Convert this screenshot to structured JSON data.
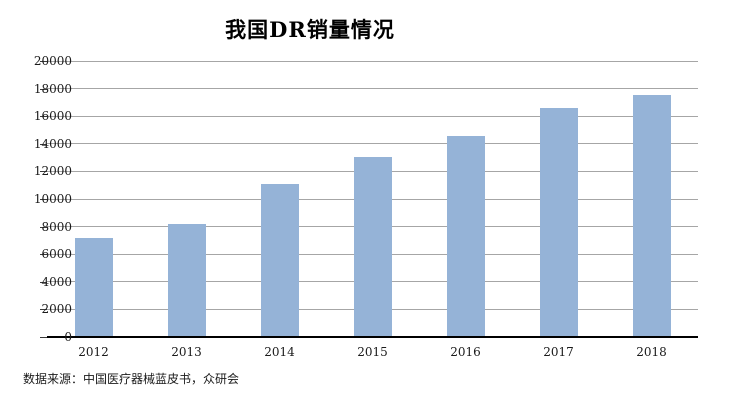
{
  "chart_data": {
    "type": "bar",
    "title": "我国DR销量情况",
    "categories": [
      "2012",
      "2013",
      "2014",
      "2015",
      "2016",
      "2017",
      "2018"
    ],
    "values": [
      7100,
      8100,
      11000,
      13000,
      14500,
      16500,
      17500
    ],
    "xlabel": "",
    "ylabel": "",
    "ylim": [
      0,
      20000
    ],
    "ytick_step": 2000,
    "ytick_labels": [
      "0",
      "2000",
      "4000",
      "6000",
      "8000",
      "10000",
      "12000",
      "14000",
      "16000",
      "18000",
      "20000"
    ],
    "grid": true,
    "legend": "none",
    "bar_color": "#95B3D7",
    "gridline_color": "#A6A6A6",
    "axis_color": "#000000",
    "text_color": "#1a1a1a"
  },
  "source": {
    "text": "数据来源：中国医疗器械蓝皮书，众研会"
  }
}
